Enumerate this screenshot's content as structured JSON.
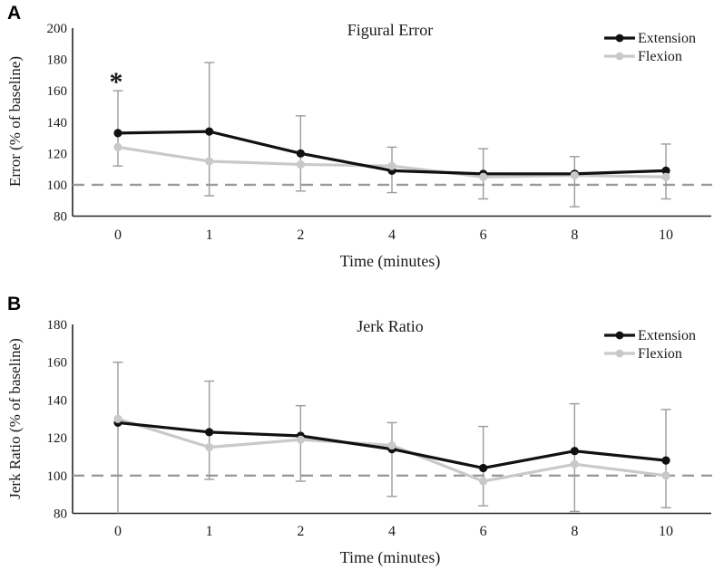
{
  "figure": {
    "background": "#ffffff",
    "baseline_color": "#9a9a9a",
    "error_bar_color": "#9b9b9b",
    "axis_color": "#262626"
  },
  "chart_data": [
    {
      "type": "line",
      "panel": "A",
      "title": "Figural Error",
      "xlabel": "Time (minutes)",
      "ylabel": "Error (% of baseline)",
      "x": [
        0,
        1,
        2,
        4,
        6,
        8,
        10
      ],
      "ylim": [
        80,
        200
      ],
      "yticks": [
        80,
        100,
        120,
        140,
        160,
        180,
        200
      ],
      "baseline": 100,
      "grid": false,
      "legend_position": "top-right",
      "series": [
        {
          "name": "Extension",
          "color": "#111111",
          "values": [
            133,
            134,
            120,
            109,
            107,
            107,
            109
          ]
        },
        {
          "name": "Flexion",
          "color": "#c9c9c9",
          "values": [
            124,
            115,
            113,
            112,
            105,
            106,
            105
          ]
        }
      ],
      "error_bars": {
        "high": [
          160,
          178,
          144,
          124,
          123,
          118,
          126
        ],
        "low": [
          112,
          93,
          96,
          95,
          91,
          86,
          91
        ]
      },
      "annotations": [
        {
          "text": "*",
          "x_index": 0,
          "y": 171,
          "meaning": "significant difference"
        }
      ]
    },
    {
      "type": "line",
      "panel": "B",
      "title": "Jerk Ratio",
      "xlabel": "Time (minutes)",
      "ylabel": "Jerk Ratio (% of baseline)",
      "x": [
        0,
        1,
        2,
        4,
        6,
        8,
        10
      ],
      "ylim": [
        80,
        180
      ],
      "yticks": [
        80,
        100,
        120,
        140,
        160,
        180
      ],
      "baseline": 100,
      "grid": false,
      "legend_position": "top-right",
      "series": [
        {
          "name": "Extension",
          "color": "#111111",
          "values": [
            128,
            123,
            121,
            114,
            104,
            113,
            108
          ]
        },
        {
          "name": "Flexion",
          "color": "#c9c9c9",
          "values": [
            130,
            115,
            119,
            116,
            97,
            106,
            100
          ]
        }
      ],
      "error_bars": {
        "high": [
          160,
          150,
          137,
          128,
          126,
          138,
          135
        ],
        "low": [
          80,
          98,
          97,
          89,
          84,
          81,
          83
        ]
      },
      "annotations": []
    }
  ]
}
